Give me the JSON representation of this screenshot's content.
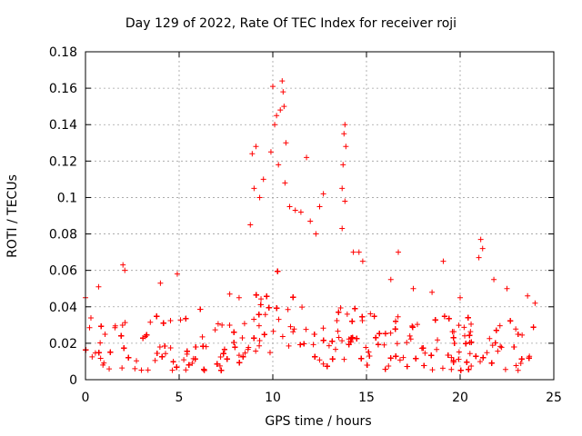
{
  "chart_data": {
    "type": "scatter",
    "title": "Day 129 of 2022, Rate Of TEC Index for receiver roji",
    "xlabel": "GPS time / hours",
    "ylabel": "ROTI / TECUs",
    "xlim": [
      0,
      25
    ],
    "ylim": [
      0,
      0.18
    ],
    "x_ticks": [
      0,
      5,
      10,
      15,
      20,
      25
    ],
    "x_tick_labels": [
      "0",
      "5",
      "10",
      "15",
      "20",
      "25"
    ],
    "y_ticks": [
      0,
      0.02,
      0.04,
      0.06,
      0.08,
      0.1,
      0.12,
      0.14,
      0.16,
      0.18
    ],
    "y_tick_labels": [
      "0",
      "0.02",
      "0.04",
      "0.06",
      "0.08",
      "0.1",
      "0.12",
      "0.14",
      "0.16",
      "0.18"
    ],
    "grid": true,
    "marker": "+",
    "color": "#ff0000",
    "data_x_range": [
      0,
      24
    ],
    "baseline": {
      "low": 0.005,
      "typical_high": 0.035
    },
    "series": [
      {
        "name": "ROTI",
        "notable_points": [
          {
            "x": 10.0,
            "y": 0.161
          },
          {
            "x": 10.5,
            "y": 0.164
          },
          {
            "x": 10.55,
            "y": 0.158
          },
          {
            "x": 10.4,
            "y": 0.148
          },
          {
            "x": 10.2,
            "y": 0.145
          },
          {
            "x": 10.1,
            "y": 0.14
          },
          {
            "x": 10.6,
            "y": 0.15
          },
          {
            "x": 10.7,
            "y": 0.13
          },
          {
            "x": 9.9,
            "y": 0.125
          },
          {
            "x": 10.3,
            "y": 0.118
          },
          {
            "x": 8.9,
            "y": 0.124
          },
          {
            "x": 9.1,
            "y": 0.128
          },
          {
            "x": 10.65,
            "y": 0.108
          },
          {
            "x": 11.8,
            "y": 0.122
          },
          {
            "x": 13.85,
            "y": 0.14
          },
          {
            "x": 13.8,
            "y": 0.135
          },
          {
            "x": 13.9,
            "y": 0.128
          },
          {
            "x": 13.75,
            "y": 0.118
          },
          {
            "x": 13.7,
            "y": 0.105
          },
          {
            "x": 13.85,
            "y": 0.098
          },
          {
            "x": 12.7,
            "y": 0.102
          },
          {
            "x": 12.5,
            "y": 0.095
          },
          {
            "x": 11.2,
            "y": 0.093
          },
          {
            "x": 9.5,
            "y": 0.11
          },
          {
            "x": 9.3,
            "y": 0.1
          },
          {
            "x": 9.0,
            "y": 0.105
          },
          {
            "x": 8.8,
            "y": 0.085
          },
          {
            "x": 10.9,
            "y": 0.095
          },
          {
            "x": 11.5,
            "y": 0.092
          },
          {
            "x": 12.0,
            "y": 0.087
          },
          {
            "x": 12.3,
            "y": 0.08
          },
          {
            "x": 13.7,
            "y": 0.083
          },
          {
            "x": 14.3,
            "y": 0.07
          },
          {
            "x": 14.6,
            "y": 0.07
          },
          {
            "x": 14.8,
            "y": 0.065
          },
          {
            "x": 16.7,
            "y": 0.07
          },
          {
            "x": 19.1,
            "y": 0.065
          },
          {
            "x": 21.1,
            "y": 0.077
          },
          {
            "x": 21.2,
            "y": 0.072
          },
          {
            "x": 21.0,
            "y": 0.067
          },
          {
            "x": 2.0,
            "y": 0.063
          },
          {
            "x": 2.1,
            "y": 0.06
          },
          {
            "x": 4.9,
            "y": 0.058
          },
          {
            "x": 4.0,
            "y": 0.053
          },
          {
            "x": 0.7,
            "y": 0.051
          },
          {
            "x": 0.0,
            "y": 0.045
          },
          {
            "x": 7.7,
            "y": 0.047
          },
          {
            "x": 8.2,
            "y": 0.045
          },
          {
            "x": 16.3,
            "y": 0.055
          },
          {
            "x": 17.5,
            "y": 0.05
          },
          {
            "x": 18.5,
            "y": 0.048
          },
          {
            "x": 20.0,
            "y": 0.045
          },
          {
            "x": 21.8,
            "y": 0.055
          },
          {
            "x": 22.5,
            "y": 0.05
          },
          {
            "x": 23.6,
            "y": 0.046
          },
          {
            "x": 24.0,
            "y": 0.042
          }
        ]
      }
    ]
  }
}
